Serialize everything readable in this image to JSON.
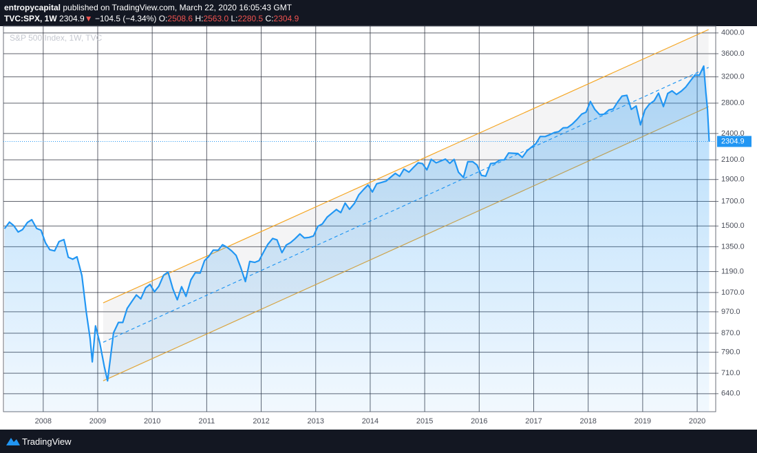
{
  "header": {
    "author": "entropycapital",
    "published": "published on TradingView.com, March 22, 2020 16:05:43 GMT",
    "symbol": "TVC:SPX, 1W",
    "last": "2304.9",
    "arrow": "▼",
    "change": "−104.5 (−4.34%)",
    "open_label": "O:",
    "open": "2508.6",
    "high_label": "H:",
    "high": "2563.0",
    "low_label": "L:",
    "low": "2280.5",
    "close_label": "C:",
    "close": "2304.9"
  },
  "footer": {
    "brand": "TradingView"
  },
  "chart_data": {
    "type": "area",
    "subtitle": "S&P 500 Index, 1W, TVC",
    "color": "#2196f3",
    "log_scale": true,
    "grid": true,
    "xlim": [
      2007.27,
      2020.34
    ],
    "ylim": [
      584,
      4140
    ],
    "xticks": [
      2008,
      2009,
      2010,
      2011,
      2012,
      2013,
      2014,
      2015,
      2016,
      2017,
      2018,
      2019,
      2020
    ],
    "yticks": [
      {
        "value": 640,
        "label": "640.0"
      },
      {
        "value": 710,
        "label": "710.0"
      },
      {
        "value": 790,
        "label": "790.0"
      },
      {
        "value": 870,
        "label": "870.0"
      },
      {
        "value": 970,
        "label": "970.0"
      },
      {
        "value": 1070,
        "label": "1070.0"
      },
      {
        "value": 1190,
        "label": "1190.0"
      },
      {
        "value": 1350,
        "label": "1350.0"
      },
      {
        "value": 1500,
        "label": "1500.0"
      },
      {
        "value": 1700,
        "label": "1700.0"
      },
      {
        "value": 1900,
        "label": "1900.0"
      },
      {
        "value": 2100,
        "label": "2100.0"
      },
      {
        "value": 2400,
        "label": "2400.0"
      },
      {
        "value": 2800,
        "label": "2800.0"
      },
      {
        "value": 3200,
        "label": "3200.0"
      },
      {
        "value": 3600,
        "label": "3600.0"
      },
      {
        "value": 4000,
        "label": "4000.0"
      }
    ],
    "x": [
      2007.29,
      2007.38,
      2007.46,
      2007.54,
      2007.62,
      2007.71,
      2007.79,
      2007.88,
      2007.96,
      2008.04,
      2008.12,
      2008.21,
      2008.29,
      2008.38,
      2008.46,
      2008.54,
      2008.62,
      2008.71,
      2008.79,
      2008.86,
      2008.9,
      2008.96,
      2009.04,
      2009.12,
      2009.18,
      2009.29,
      2009.38,
      2009.46,
      2009.54,
      2009.62,
      2009.71,
      2009.79,
      2009.88,
      2009.96,
      2010.04,
      2010.12,
      2010.21,
      2010.29,
      2010.38,
      2010.46,
      2010.54,
      2010.62,
      2010.71,
      2010.79,
      2010.88,
      2010.96,
      2011.04,
      2011.12,
      2011.21,
      2011.29,
      2011.38,
      2011.46,
      2011.54,
      2011.62,
      2011.71,
      2011.79,
      2011.88,
      2011.96,
      2012.04,
      2012.12,
      2012.21,
      2012.29,
      2012.38,
      2012.46,
      2012.54,
      2012.62,
      2012.71,
      2012.79,
      2012.88,
      2012.96,
      2013.04,
      2013.12,
      2013.21,
      2013.29,
      2013.38,
      2013.46,
      2013.54,
      2013.62,
      2013.71,
      2013.79,
      2013.88,
      2013.96,
      2014.04,
      2014.12,
      2014.21,
      2014.29,
      2014.38,
      2014.46,
      2014.54,
      2014.62,
      2014.71,
      2014.79,
      2014.88,
      2014.96,
      2015.04,
      2015.12,
      2015.21,
      2015.29,
      2015.38,
      2015.46,
      2015.54,
      2015.62,
      2015.71,
      2015.79,
      2015.88,
      2015.96,
      2016.04,
      2016.12,
      2016.21,
      2016.29,
      2016.38,
      2016.46,
      2016.54,
      2016.62,
      2016.71,
      2016.79,
      2016.88,
      2016.96,
      2017.04,
      2017.12,
      2017.21,
      2017.29,
      2017.38,
      2017.46,
      2017.54,
      2017.62,
      2017.71,
      2017.79,
      2017.88,
      2017.96,
      2018.04,
      2018.12,
      2018.21,
      2018.29,
      2018.38,
      2018.46,
      2018.54,
      2018.62,
      2018.71,
      2018.79,
      2018.88,
      2018.96,
      2019.04,
      2019.12,
      2019.21,
      2019.29,
      2019.38,
      2019.46,
      2019.54,
      2019.62,
      2019.71,
      2019.79,
      2019.88,
      2019.96,
      2020.04,
      2020.12,
      2020.16,
      2020.19,
      2020.22
    ],
    "values": [
      1480,
      1530,
      1503,
      1455,
      1473,
      1527,
      1549,
      1481,
      1468,
      1378,
      1330,
      1322,
      1386,
      1400,
      1280,
      1267,
      1283,
      1166,
      968,
      848,
      752,
      903,
      826,
      735,
      683,
      872,
      919,
      919,
      987,
      1020,
      1057,
      1036,
      1096,
      1115,
      1074,
      1104,
      1169,
      1187,
      1089,
      1031,
      1102,
      1049,
      1141,
      1183,
      1181,
      1258,
      1286,
      1327,
      1326,
      1364,
      1345,
      1321,
      1292,
      1219,
      1131,
      1253,
      1247,
      1258,
      1312,
      1366,
      1408,
      1398,
      1310,
      1362,
      1379,
      1406,
      1441,
      1412,
      1416,
      1426,
      1498,
      1515,
      1569,
      1598,
      1631,
      1606,
      1686,
      1633,
      1682,
      1757,
      1806,
      1848,
      1783,
      1859,
      1872,
      1884,
      1924,
      1960,
      1931,
      2003,
      1972,
      2018,
      2068,
      2059,
      1995,
      2105,
      2068,
      2086,
      2107,
      2063,
      2104,
      1972,
      1920,
      2079,
      2080,
      2044,
      1940,
      1932,
      2060,
      2065,
      2097,
      2099,
      2174,
      2171,
      2168,
      2126,
      2199,
      2239,
      2279,
      2364,
      2363,
      2384,
      2412,
      2423,
      2470,
      2472,
      2519,
      2575,
      2648,
      2674,
      2824,
      2714,
      2641,
      2648,
      2705,
      2718,
      2816,
      2902,
      2914,
      2712,
      2760,
      2507,
      2704,
      2784,
      2834,
      2946,
      2752,
      2942,
      2980,
      2926,
      2977,
      3038,
      3141,
      3231,
      3226,
      3380,
      2954,
      2711,
      2304.9
    ],
    "channel": {
      "color": "#f5a623",
      "x": [
        2009.1,
        2020.21
      ],
      "upper": [
        1015,
        4070
      ],
      "middle": [
        831,
        3357
      ],
      "lower": [
        683,
        2750
      ]
    }
  }
}
